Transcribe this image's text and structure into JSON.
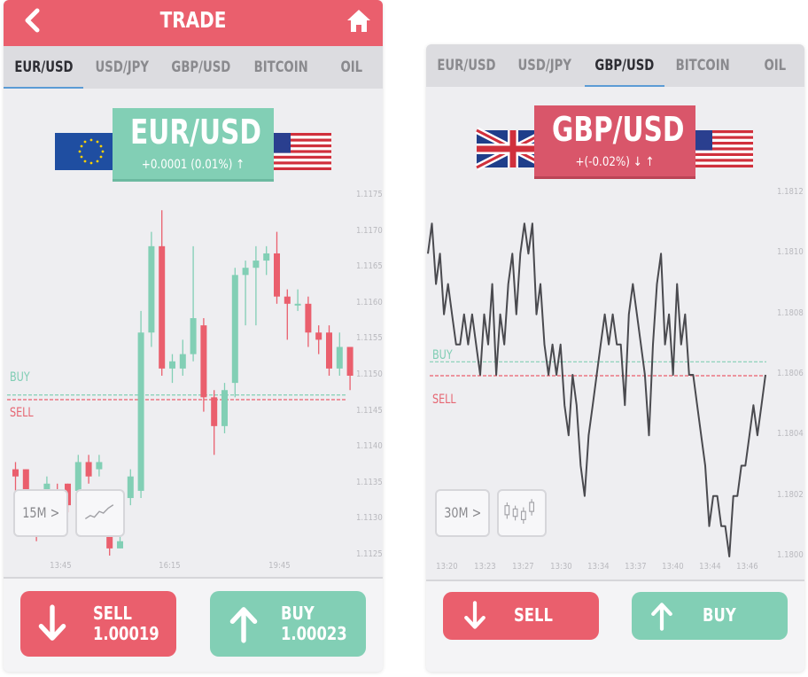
{
  "left_screen": {
    "title": "TRADE",
    "tabs": [
      {
        "label": "EUR/USD",
        "active": true
      },
      {
        "label": "USD/JPY",
        "active": false
      },
      {
        "label": "GBP/USD",
        "active": false
      },
      {
        "label": "BITCOIN",
        "active": false
      },
      {
        "label": "OIL",
        "active": false
      }
    ],
    "pair": "EUR/USD",
    "change": "+0.0001 (0.01%) ↑",
    "y_ticks": [
      "1.1175",
      "1.1170",
      "1.1165",
      "1.1160",
      "1.1155",
      "1.1150",
      "1.1145",
      "1.1140",
      "1.1135",
      "1.1130",
      "1.1125"
    ],
    "x_ticks": [
      "13:45",
      "16:15",
      "19:45"
    ],
    "buy_level_label": "BUY",
    "sell_level_label": "SELL",
    "timeframe": "15M >",
    "sell_button": {
      "label": "SELL",
      "price": "1.00019"
    },
    "buy_button": {
      "label": "BUY",
      "price": "1.00023"
    }
  },
  "right_screen": {
    "tabs": [
      {
        "label": "EUR/USD",
        "active": false
      },
      {
        "label": "USD/JPY",
        "active": false
      },
      {
        "label": "GBP/USD",
        "active": true
      },
      {
        "label": "BITCOIN",
        "active": false
      },
      {
        "label": "OIL",
        "active": false
      }
    ],
    "pair": "GBP/USD",
    "change": "+(-0.02%) ↓ ↑",
    "y_ticks": [
      "1.1812",
      "1.1810",
      "1.1808",
      "1.1806",
      "1.1804",
      "1.1802",
      "1.1800"
    ],
    "x_ticks": [
      "13:20",
      "13:23",
      "13:27",
      "13:30",
      "13:34",
      "13:37",
      "13:40",
      "13:44",
      "13:46"
    ],
    "buy_level_label": "BUY",
    "sell_level_label": "SELL",
    "timeframe": "30M >",
    "sell_button": {
      "label": "SELL"
    },
    "buy_button": {
      "label": "BUY"
    }
  },
  "colors": {
    "red": "#ea5f6d",
    "green": "#82cfb5",
    "line": "#4a4a4f"
  },
  "chart_data": [
    {
      "type": "candlestick",
      "pair": "EUR/USD",
      "ylim": [
        1.1125,
        1.1175
      ],
      "y_ticks": [
        1.1175,
        1.117,
        1.1165,
        1.116,
        1.1155,
        1.115,
        1.1145,
        1.114,
        1.1135,
        1.113,
        1.1125
      ],
      "x_ticks": [
        "13:45",
        "16:15",
        "19:45"
      ],
      "buy_level": 1.11472,
      "sell_level": 1.11468,
      "candles": [
        {
          "open": 1.1137,
          "close": 1.1136,
          "high": 1.1138,
          "low": 1.1134
        },
        {
          "open": 1.1137,
          "close": 1.1134,
          "high": 1.1137,
          "low": 1.1133
        },
        {
          "open": 1.113,
          "close": 1.1128,
          "high": 1.1131,
          "low": 1.1127
        },
        {
          "open": 1.1131,
          "close": 1.1135,
          "high": 1.1136,
          "low": 1.113
        },
        {
          "open": 1.1134,
          "close": 1.1131,
          "high": 1.1135,
          "low": 1.113
        },
        {
          "open": 1.1135,
          "close": 1.1132,
          "high": 1.1135,
          "low": 1.1131
        },
        {
          "open": 1.1134,
          "close": 1.1138,
          "high": 1.1139,
          "low": 1.1133
        },
        {
          "open": 1.1138,
          "close": 1.1136,
          "high": 1.1139,
          "low": 1.1135
        },
        {
          "open": 1.1137,
          "close": 1.1138,
          "high": 1.1139,
          "low": 1.1136
        },
        {
          "open": 1.1128,
          "close": 1.1126,
          "high": 1.1129,
          "low": 1.1125
        },
        {
          "open": 1.1126,
          "close": 1.1127,
          "high": 1.1129,
          "low": 1.1126
        },
        {
          "open": 1.1133,
          "close": 1.1136,
          "high": 1.1137,
          "low": 1.1132
        },
        {
          "open": 1.1134,
          "close": 1.1156,
          "high": 1.1159,
          "low": 1.1133
        },
        {
          "open": 1.1156,
          "close": 1.1168,
          "high": 1.117,
          "low": 1.1154
        },
        {
          "open": 1.1168,
          "close": 1.1151,
          "high": 1.1173,
          "low": 1.115
        },
        {
          "open": 1.1151,
          "close": 1.1152,
          "high": 1.1153,
          "low": 1.1149
        },
        {
          "open": 1.1151,
          "close": 1.1153,
          "high": 1.1155,
          "low": 1.115
        },
        {
          "open": 1.1153,
          "close": 1.1158,
          "high": 1.1168,
          "low": 1.1152
        },
        {
          "open": 1.1157,
          "close": 1.1147,
          "high": 1.1158,
          "low": 1.1145
        },
        {
          "open": 1.1147,
          "close": 1.1143,
          "high": 1.1148,
          "low": 1.1139
        },
        {
          "open": 1.1143,
          "close": 1.1148,
          "high": 1.1149,
          "low": 1.1142
        },
        {
          "open": 1.1149,
          "close": 1.1164,
          "high": 1.1165,
          "low": 1.1147
        },
        {
          "open": 1.1164,
          "close": 1.1165,
          "high": 1.1166,
          "low": 1.1157
        },
        {
          "open": 1.1165,
          "close": 1.1166,
          "high": 1.1168,
          "low": 1.1157
        },
        {
          "open": 1.1166,
          "close": 1.1167,
          "high": 1.1168,
          "low": 1.1164
        },
        {
          "open": 1.1167,
          "close": 1.1161,
          "high": 1.117,
          "low": 1.116
        },
        {
          "open": 1.1161,
          "close": 1.116,
          "high": 1.1162,
          "low": 1.1155
        },
        {
          "open": 1.116,
          "close": 1.116,
          "high": 1.1162,
          "low": 1.1159
        },
        {
          "open": 1.116,
          "close": 1.1156,
          "high": 1.1161,
          "low": 1.1154
        },
        {
          "open": 1.1156,
          "close": 1.1155,
          "high": 1.1157,
          "low": 1.1153
        },
        {
          "open": 1.1156,
          "close": 1.1151,
          "high": 1.1157,
          "low": 1.115
        },
        {
          "open": 1.1151,
          "close": 1.1154,
          "high": 1.1156,
          "low": 1.115
        },
        {
          "open": 1.1154,
          "close": 1.115,
          "high": 1.1154,
          "low": 1.1148
        }
      ]
    },
    {
      "type": "line",
      "pair": "GBP/USD",
      "ylim": [
        1.18,
        1.1812
      ],
      "y_ticks": [
        1.1812,
        1.181,
        1.1808,
        1.1806,
        1.1804,
        1.1802,
        1.18
      ],
      "x_ticks": [
        "13:20",
        "13:23",
        "13:27",
        "13:30",
        "13:34",
        "13:37",
        "13:40",
        "13:44",
        "13:46"
      ],
      "buy_level": 1.18064,
      "sell_level": 1.1806,
      "series": [
        {
          "values": [
            1.181,
            1.1811,
            1.1809,
            1.181,
            1.1808,
            1.1809,
            1.1808,
            1.1807,
            1.1807,
            1.1808,
            1.1807,
            1.1808,
            1.1807,
            1.1806,
            1.1808,
            1.1807,
            1.1809,
            1.1806,
            1.1808,
            1.1807,
            1.1809,
            1.181,
            1.1808,
            1.181,
            1.1811,
            1.181,
            1.1811,
            1.1808,
            1.1809,
            1.1807,
            1.1806,
            1.1807,
            1.1806,
            1.1807,
            1.1805,
            1.1804,
            1.1806,
            1.1805,
            1.1803,
            1.1802,
            1.1804,
            1.1805,
            1.1806,
            1.1807,
            1.1808,
            1.1807,
            1.1808,
            1.1807,
            1.1807,
            1.1805,
            1.1808,
            1.1809,
            1.1808,
            1.1807,
            1.1806,
            1.1804,
            1.1807,
            1.1809,
            1.181,
            1.1807,
            1.1808,
            1.1806,
            1.1809,
            1.1807,
            1.1808,
            1.1806,
            1.1806,
            1.1805,
            1.1804,
            1.1803,
            1.1801,
            1.1802,
            1.1802,
            1.1801,
            1.1801,
            1.18,
            1.1802,
            1.1802,
            1.1803,
            1.1803,
            1.1804,
            1.1805,
            1.1804,
            1.1805,
            1.1806
          ]
        }
      ]
    }
  ]
}
